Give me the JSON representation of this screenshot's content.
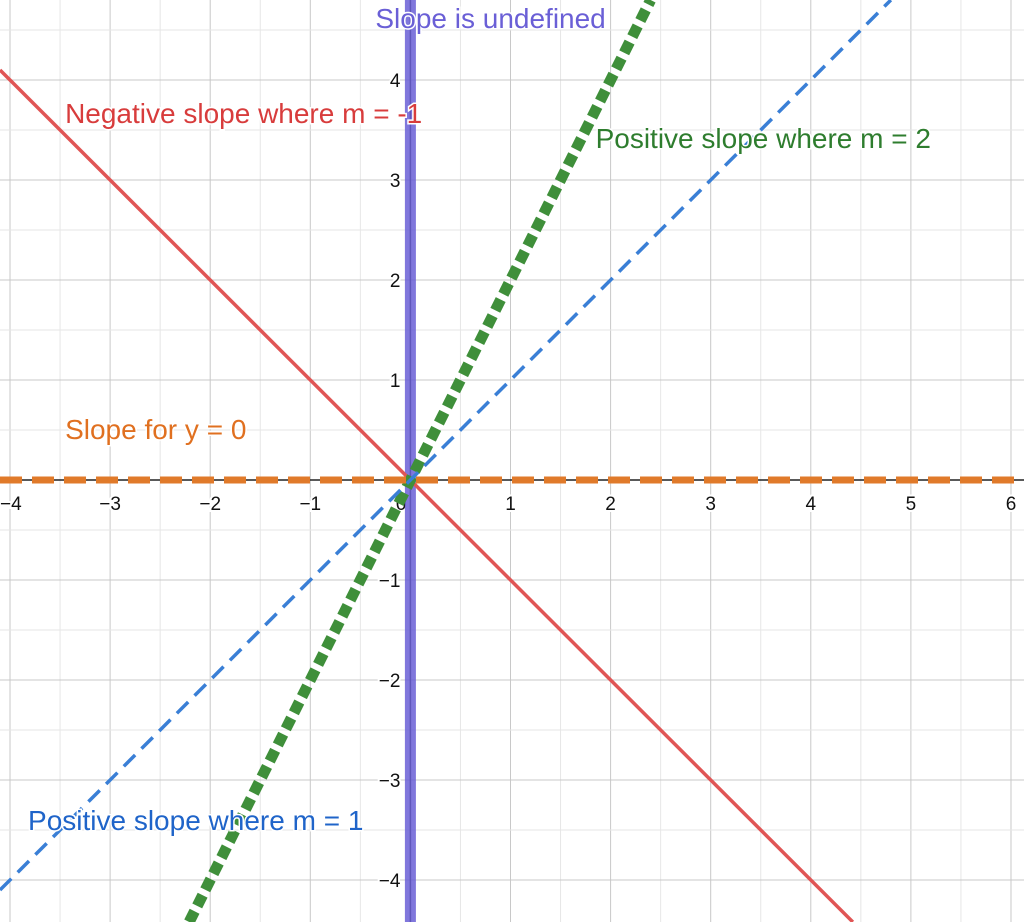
{
  "chart_data": {
    "type": "line",
    "title": "",
    "xlabel": "",
    "ylabel": "",
    "xlim": [
      -4.1,
      6.13
    ],
    "ylim": [
      -4.42,
      4.8
    ],
    "grid": true,
    "x_ticks": [
      -4,
      -3,
      -2,
      -1,
      0,
      1,
      2,
      3,
      4,
      5,
      6
    ],
    "y_ticks": [
      -4,
      -3,
      -2,
      -1,
      1,
      2,
      3,
      4
    ],
    "x_tick_labels": [
      "−4",
      "−3",
      "−2",
      "−1",
      "0",
      "1",
      "2",
      "3",
      "4",
      "5",
      "6"
    ],
    "y_tick_labels": [
      "−4",
      "−3",
      "−2",
      "−1",
      "1",
      "2",
      "3",
      "4"
    ],
    "series": [
      {
        "id": "undefined",
        "label": "Slope is undefined",
        "color": "#6a5fd6",
        "style": "solid-thick",
        "points": [
          [
            0,
            -4.42
          ],
          [
            0,
            4.8
          ]
        ]
      },
      {
        "id": "neg1",
        "label": "Negative slope where m = -1",
        "color": "#e05555",
        "style": "solid",
        "points": [
          [
            -4.1,
            4.1
          ],
          [
            4.42,
            -4.42
          ]
        ]
      },
      {
        "id": "pos2",
        "label": "Positive slope where m = 2",
        "color": "#3f8f3a",
        "style": "dotted-thick",
        "points": [
          [
            -2.21,
            -4.42
          ],
          [
            2.4,
            4.8
          ]
        ]
      },
      {
        "id": "pos1",
        "label": "Positive slope where m = 1",
        "color": "#3a7fd6",
        "style": "dashed",
        "points": [
          [
            -4.1,
            -4.1
          ],
          [
            4.8,
            4.8
          ]
        ]
      },
      {
        "id": "zero",
        "label": "Slope for y = 0",
        "color": "#e07a2a",
        "style": "dashed-thick",
        "points": [
          [
            -4.1,
            0
          ],
          [
            6.13,
            0
          ]
        ]
      }
    ],
    "annotations": [
      {
        "series": "undefined",
        "text": "Slope is undefined",
        "x": -0.35,
        "y": 4.52,
        "color": "#6a5fd6"
      },
      {
        "series": "neg1",
        "text": "Negative slope where m = -1",
        "x": -3.45,
        "y": 3.57,
        "color": "#d83c3c"
      },
      {
        "series": "pos2",
        "text": "Positive slope where m = 2",
        "x": 1.85,
        "y": 3.32,
        "color": "#2e7d2e"
      },
      {
        "series": "zero",
        "text": "Slope for y = 0",
        "x": -3.45,
        "y": 0.41,
        "color": "#e07020"
      },
      {
        "series": "pos1",
        "text": "Positive slope where m = 1",
        "x": -3.82,
        "y": -3.5,
        "color": "#1f64c9"
      }
    ]
  }
}
